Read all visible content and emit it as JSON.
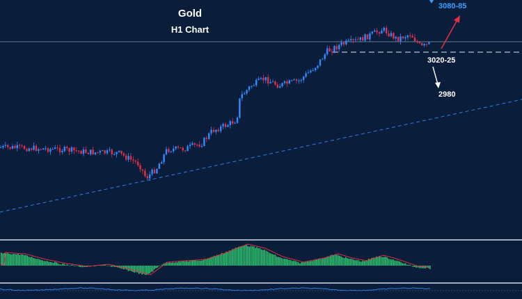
{
  "chart_data": {
    "type": "candlestick",
    "title": "Gold",
    "subtitle": "H1 Chart",
    "annotations": [
      {
        "text": "3080-85",
        "color": "#3aa0ff"
      },
      {
        "text": "3020-25",
        "color": "#ffffff"
      },
      {
        "text": "2980",
        "color": "#ffffff"
      }
    ],
    "levels": [
      {
        "label": "3020-25",
        "style": "dashed",
        "color": "#b8c2d0"
      }
    ],
    "colors": {
      "background": "#0a1d3a",
      "bull": "#2f8bff",
      "bear": "#e0304a",
      "trendline": "#2f7fe6",
      "up_arrow": "#e03040",
      "down_arrow": "#ffffff",
      "histogram": "#2ec56f",
      "signal": "#e03040"
    },
    "indicator_panels": [
      "histogram oscillator",
      "line oscillator"
    ],
    "grid": false
  }
}
